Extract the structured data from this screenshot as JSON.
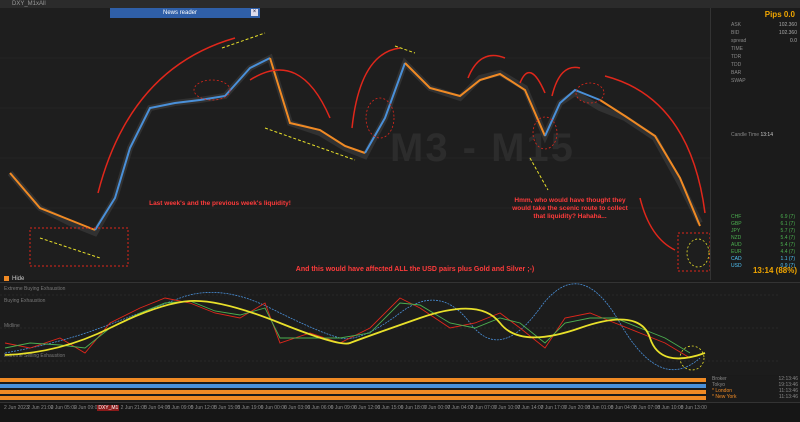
{
  "window": {
    "symbol": "DXY_M1xAll"
  },
  "news": {
    "title": "News reader"
  },
  "panel": {
    "pips_label": "Pips 0.0",
    "rows": [
      {
        "k": "ASK",
        "v": "102.360"
      },
      {
        "k": "BID",
        "v": "102.360"
      },
      {
        "k": "spread",
        "v": "0.0"
      },
      {
        "k": "TIME",
        "v": ""
      },
      {
        "k": "TDR",
        "v": ""
      },
      {
        "k": "TDD",
        "v": ""
      },
      {
        "k": "BAR",
        "v": ""
      },
      {
        "k": "SWAP",
        "v": ""
      }
    ],
    "candle_time_label": "Candle Time",
    "candle_time": "13:14",
    "currencies": [
      {
        "c": "CHF",
        "v": "6.9 (7)",
        "col": "#4caf50"
      },
      {
        "c": "GBP",
        "v": "6.1 (7)",
        "col": "#4caf50"
      },
      {
        "c": "JPY",
        "v": "5.7 (7)",
        "col": "#4caf50"
      },
      {
        "c": "NZD",
        "v": "5.4 (7)",
        "col": "#4caf50"
      },
      {
        "c": "AUD",
        "v": "5.4 (7)",
        "col": "#4caf50"
      },
      {
        "c": "EUR",
        "v": "4.4 (7)",
        "col": "#4caf50"
      },
      {
        "c": "CAD",
        "v": "1.1 (7)",
        "col": "#4fc3f7"
      },
      {
        "c": "USD",
        "v": "0.9 (7)",
        "col": "#4fc3f7"
      }
    ],
    "timer": "13:14 (88%)"
  },
  "watermark": "M3 - M15",
  "notes": {
    "liquidity": "Last week's and the previous week's liquidity!",
    "scenic": "Hmm, who would have thought they would take the scenic route to collect that liquidity? Hahaha...",
    "affected": "And this would have affected ALL the USD pairs plus Gold and Silver ;-)"
  },
  "hide_label": "Hide",
  "osc_labels": [
    "Extreme Buying Exhaustion",
    "Buying Exhaustion",
    "Midline",
    "Extreme Selling Exhaustion"
  ],
  "sessions": [
    {
      "k": "Broker",
      "v": "12:13:46"
    },
    {
      "k": "Tokyo",
      "v": "19:13:46"
    },
    {
      "k": "* London",
      "v": "11:13:46"
    },
    {
      "k": "* New York",
      "v": "11:13:46"
    }
  ],
  "axis_labels": [
    "2 Jun 2023",
    "2 Jun 21:00",
    "2 Jun 05:00",
    "2 Jun 09:00",
    "DXY_M1",
    "2 Jun 21:00",
    "5 Jun 04:00",
    "5 Jun 09:00",
    "5 Jun 12:00",
    "5 Jun 15:00",
    "5 Jun 19:00",
    "6 Jun 00:00",
    "6 Jun 03:00",
    "6 Jun 06:00",
    "6 Jun 09:00",
    "6 Jun 12:00",
    "6 Jun 15:00",
    "6 Jun 18:00",
    "7 Jun 00:00",
    "7 Jun 04:00",
    "7 Jun 07:00",
    "7 Jun 10:00",
    "7 Jun 14:00",
    "7 Jun 17:00",
    "7 Jun 20:00",
    "8 Jun 01:00",
    "8 Jun 04:00",
    "8 Jun 07:00",
    "8 Jun 10:00",
    "8 Jun 13:00"
  ],
  "colors": {
    "bull": "#4a90d9",
    "bear": "#f08a24",
    "arrow": "#e0271b",
    "yellow": "#e8e02a"
  }
}
